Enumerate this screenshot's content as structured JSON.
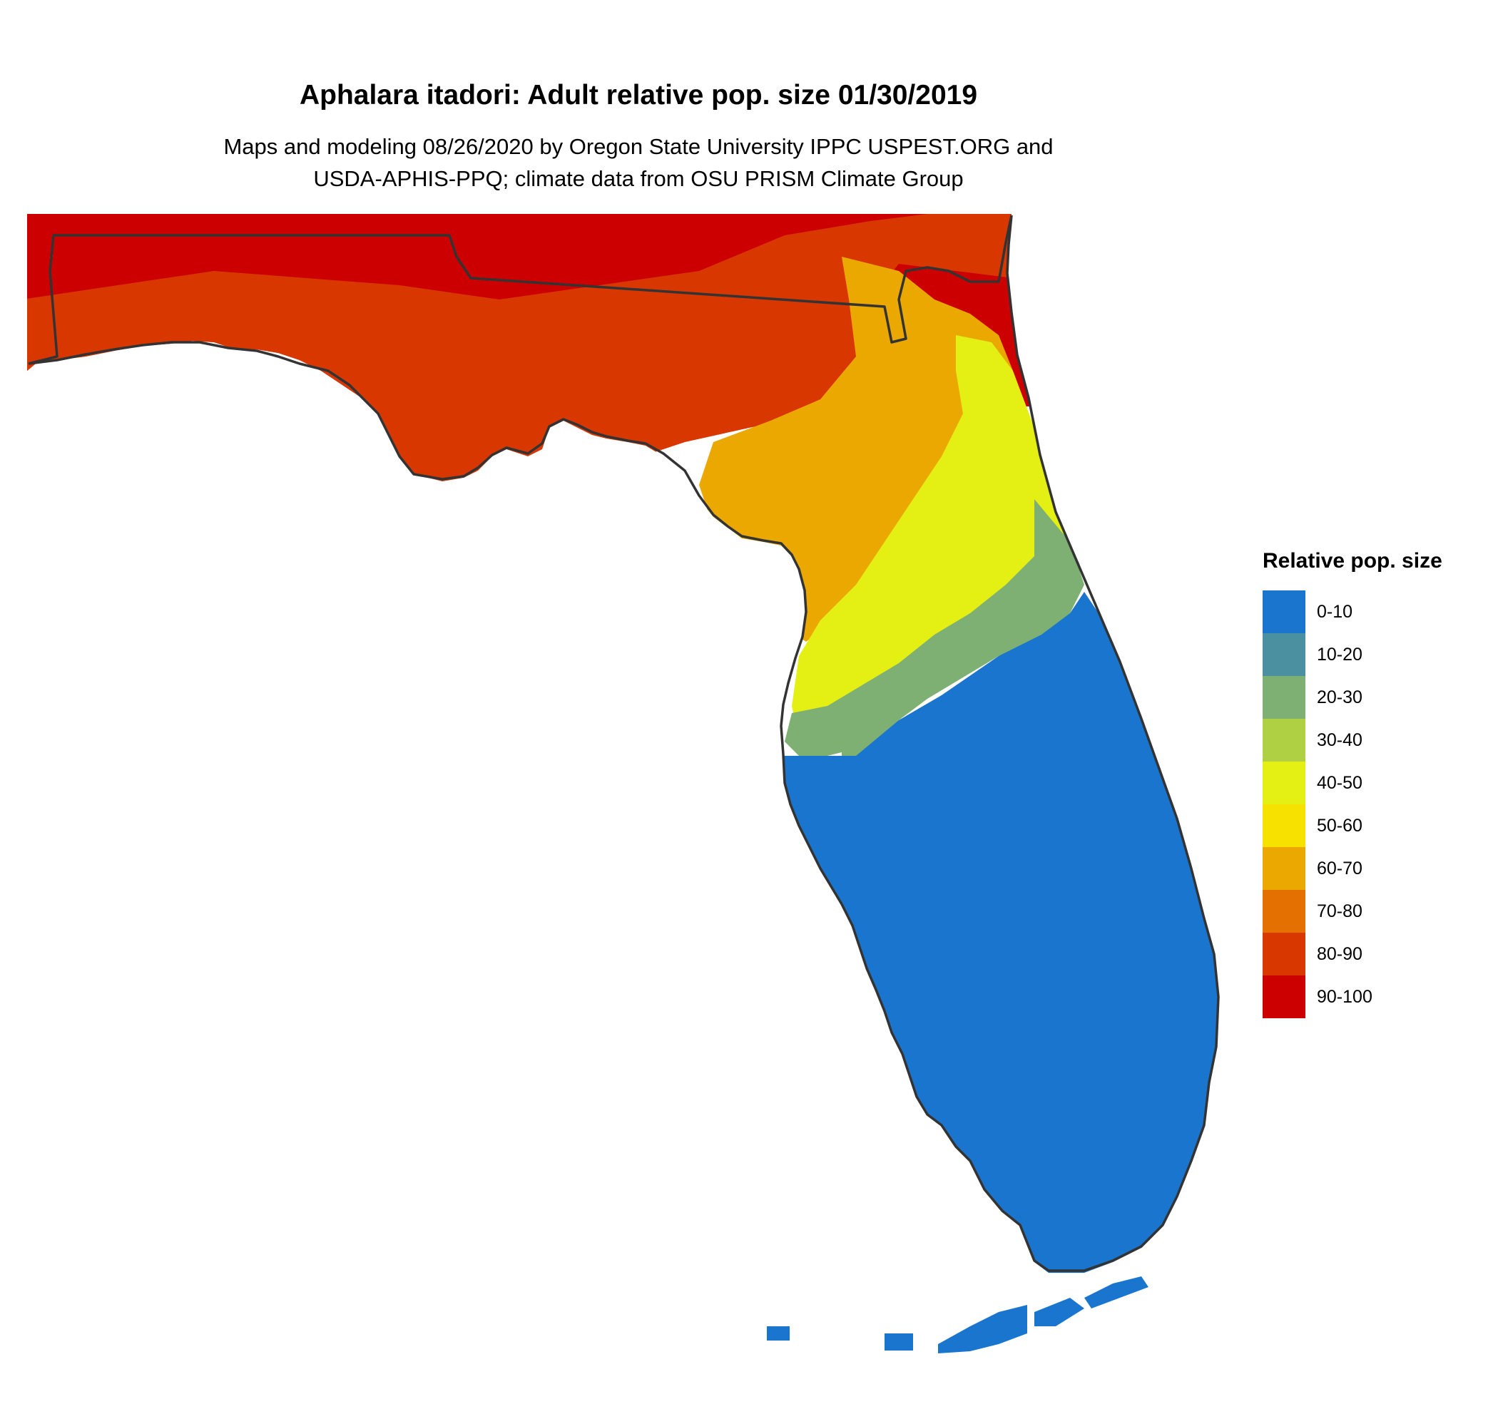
{
  "title": "Aphalara itadori: Adult relative pop. size 01/30/2019",
  "subtitle_line1": "Maps and modeling 08/26/2020 by Oregon State University IPPC USPEST.ORG and",
  "subtitle_line2": "USDA-APHIS-PPQ; climate data from OSU PRISM Climate Group",
  "legend": {
    "title": "Relative pop. size",
    "items": [
      {
        "label": "0-10",
        "color": "#1a75cf"
      },
      {
        "label": "10-20",
        "color": "#4a90a0"
      },
      {
        "label": "20-30",
        "color": "#7fb073"
      },
      {
        "label": "30-40",
        "color": "#b0d044"
      },
      {
        "label": "40-50",
        "color": "#e4ef13"
      },
      {
        "label": "50-60",
        "color": "#f7e100"
      },
      {
        "label": "60-70",
        "color": "#eba800"
      },
      {
        "label": "70-80",
        "color": "#e37000"
      },
      {
        "label": "80-90",
        "color": "#d83800"
      },
      {
        "label": "90-100",
        "color": "#cc0000"
      }
    ]
  },
  "map": {
    "region": "Florida",
    "outline_color": "#333333"
  }
}
